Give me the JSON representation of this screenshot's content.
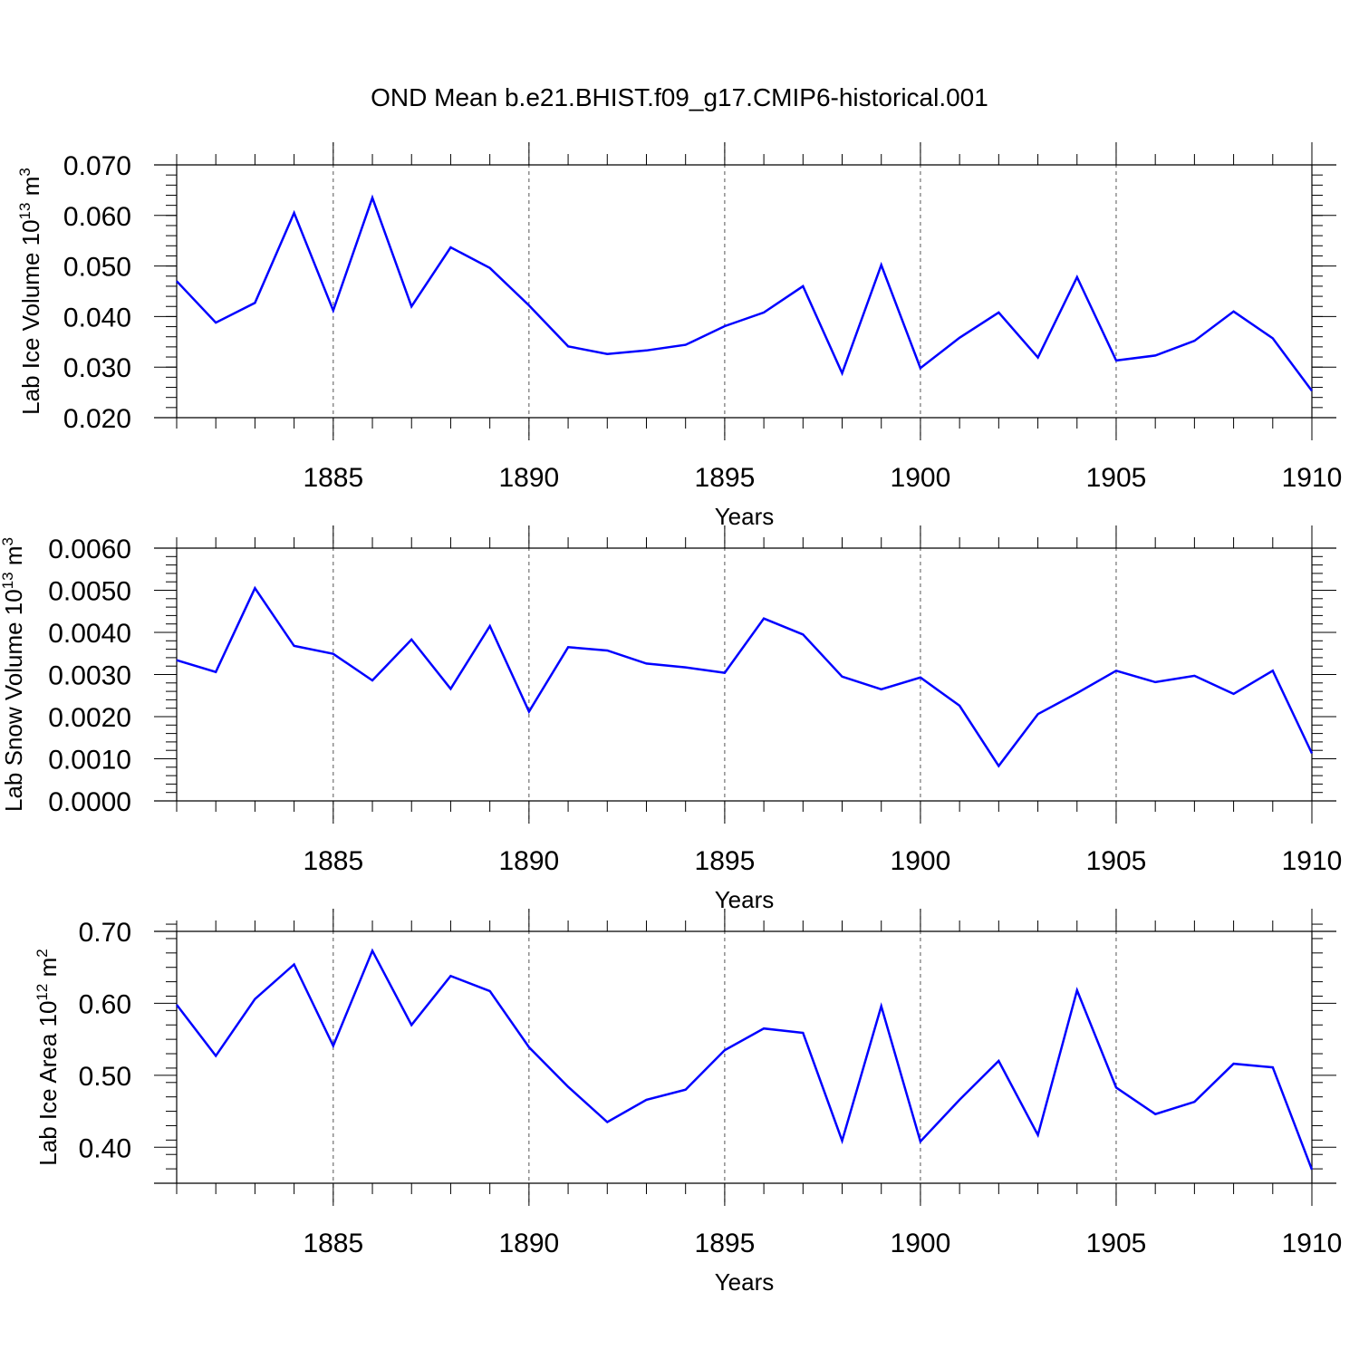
{
  "title": "OND Mean b.e21.BHIST.f09_g17.CMIP6-historical.001",
  "line_color": "#0000ff",
  "chart_data": [
    {
      "type": "line",
      "xlabel": "Years",
      "ylabel": "Lab Ice Volume",
      "yunit_base": "10",
      "yunit_exp": "13",
      "yunit_sym": "m",
      "yunit_pow": "3",
      "xlim": [
        1881,
        1910
      ],
      "ylim": [
        0.02,
        0.07
      ],
      "yticks": [
        0.02,
        0.03,
        0.04,
        0.05,
        0.06,
        0.07
      ],
      "ytick_labels": [
        "0.020",
        "0.030",
        "0.040",
        "0.050",
        "0.060",
        "0.070"
      ],
      "yminor": 0.002,
      "xticks": [
        1885,
        1890,
        1895,
        1900,
        1905,
        1910
      ],
      "xtick_labels": [
        "1885",
        "1890",
        "1895",
        "1900",
        "1905",
        "1910"
      ],
      "x": [
        1881,
        1882,
        1883,
        1884,
        1885,
        1886,
        1887,
        1888,
        1889,
        1890,
        1891,
        1892,
        1893,
        1894,
        1895,
        1896,
        1897,
        1898,
        1899,
        1900,
        1901,
        1902,
        1903,
        1904,
        1905,
        1906,
        1907,
        1908,
        1909,
        1910
      ],
      "values": [
        0.047,
        0.0388,
        0.0427,
        0.0605,
        0.0412,
        0.0635,
        0.042,
        0.0537,
        0.0496,
        0.0422,
        0.0341,
        0.0326,
        0.0333,
        0.0344,
        0.0381,
        0.0408,
        0.046,
        0.0288,
        0.0502,
        0.0298,
        0.0358,
        0.0408,
        0.0319,
        0.0478,
        0.0313,
        0.0323,
        0.0352,
        0.041,
        0.0357,
        0.0253
      ]
    },
    {
      "type": "line",
      "xlabel": "Years",
      "ylabel": "Lab Snow Volume",
      "yunit_base": "10",
      "yunit_exp": "13",
      "yunit_sym": "m",
      "yunit_pow": "3",
      "xlim": [
        1881,
        1910
      ],
      "ylim": [
        0.0,
        0.006
      ],
      "yticks": [
        0.0,
        0.001,
        0.002,
        0.003,
        0.004,
        0.005,
        0.006
      ],
      "ytick_labels": [
        "0.0000",
        "0.0010",
        "0.0020",
        "0.0030",
        "0.0040",
        "0.0050",
        "0.0060"
      ],
      "yminor": 0.0002,
      "xticks": [
        1885,
        1890,
        1895,
        1900,
        1905,
        1910
      ],
      "xtick_labels": [
        "1885",
        "1890",
        "1895",
        "1900",
        "1905",
        "1910"
      ],
      "x": [
        1881,
        1882,
        1883,
        1884,
        1885,
        1886,
        1887,
        1888,
        1889,
        1890,
        1891,
        1892,
        1893,
        1894,
        1895,
        1896,
        1897,
        1898,
        1899,
        1900,
        1901,
        1902,
        1903,
        1904,
        1905,
        1906,
        1907,
        1908,
        1909,
        1910
      ],
      "values": [
        0.00334,
        0.00306,
        0.00505,
        0.00368,
        0.00349,
        0.00286,
        0.00383,
        0.00266,
        0.00415,
        0.00212,
        0.00365,
        0.00357,
        0.00326,
        0.00317,
        0.00304,
        0.00433,
        0.00395,
        0.00295,
        0.00265,
        0.00293,
        0.00226,
        0.00083,
        0.00206,
        0.00256,
        0.00309,
        0.00282,
        0.00297,
        0.00254,
        0.00309,
        0.00113
      ]
    },
    {
      "type": "line",
      "xlabel": "Years",
      "ylabel": "Lab Ice Area",
      "yunit_base": "10",
      "yunit_exp": "12",
      "yunit_sym": "m",
      "yunit_pow": "2",
      "xlim": [
        1881,
        1910
      ],
      "ylim": [
        0.35,
        0.7
      ],
      "yticks": [
        0.4,
        0.5,
        0.6,
        0.7
      ],
      "ytick_labels": [
        "0.40",
        "0.50",
        "0.60",
        "0.70"
      ],
      "yminor": 0.02,
      "xticks": [
        1885,
        1890,
        1895,
        1900,
        1905,
        1910
      ],
      "xtick_labels": [
        "1885",
        "1890",
        "1895",
        "1900",
        "1905",
        "1910"
      ],
      "x": [
        1881,
        1882,
        1883,
        1884,
        1885,
        1886,
        1887,
        1888,
        1889,
        1890,
        1891,
        1892,
        1893,
        1894,
        1895,
        1896,
        1897,
        1898,
        1899,
        1900,
        1901,
        1902,
        1903,
        1904,
        1905,
        1906,
        1907,
        1908,
        1909,
        1910
      ],
      "values": [
        0.598,
        0.527,
        0.606,
        0.654,
        0.541,
        0.673,
        0.57,
        0.638,
        0.617,
        0.539,
        0.484,
        0.435,
        0.466,
        0.48,
        0.535,
        0.565,
        0.559,
        0.409,
        0.596,
        0.408,
        0.466,
        0.52,
        0.417,
        0.618,
        0.483,
        0.446,
        0.463,
        0.516,
        0.511,
        0.369
      ]
    }
  ]
}
